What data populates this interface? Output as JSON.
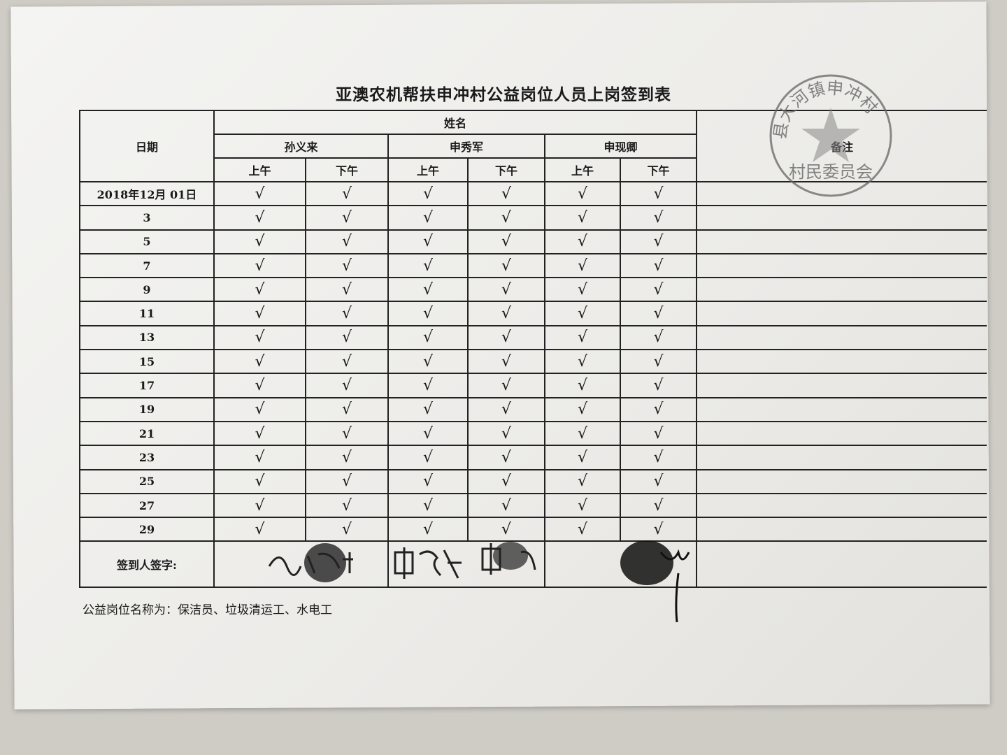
{
  "title": "亚澳农机帮扶申冲村公益岗位人员上岗签到表",
  "header": {
    "date_label": "日期",
    "name_label": "姓名",
    "remarks_label": "备注",
    "people": [
      "孙义来",
      "申秀军",
      "申现卿"
    ],
    "am": "上午",
    "pm": "下午"
  },
  "rows": [
    {
      "date": "2018年12月 01日",
      "marks": [
        "√",
        "√",
        "√",
        "√",
        "√",
        "√"
      ]
    },
    {
      "date": "3",
      "marks": [
        "√",
        "√",
        "√",
        "√",
        "√",
        "√"
      ]
    },
    {
      "date": "5",
      "marks": [
        "√",
        "√",
        "√",
        "√",
        "√",
        "√"
      ]
    },
    {
      "date": "7",
      "marks": [
        "√",
        "√",
        "√",
        "√",
        "√",
        "√"
      ]
    },
    {
      "date": "9",
      "marks": [
        "√",
        "√",
        "√",
        "√",
        "√",
        "√"
      ]
    },
    {
      "date": "11",
      "marks": [
        "√",
        "√",
        "√",
        "√",
        "√",
        "√"
      ]
    },
    {
      "date": "13",
      "marks": [
        "√",
        "√",
        "√",
        "√",
        "√",
        "√"
      ]
    },
    {
      "date": "15",
      "marks": [
        "√",
        "√",
        "√",
        "√",
        "√",
        "√"
      ]
    },
    {
      "date": "17",
      "marks": [
        "√",
        "√",
        "√",
        "√",
        "√",
        "√"
      ]
    },
    {
      "date": "19",
      "marks": [
        "√",
        "√",
        "√",
        "√",
        "√",
        "√"
      ]
    },
    {
      "date": "21",
      "marks": [
        "√",
        "√",
        "√",
        "√",
        "√",
        "√"
      ]
    },
    {
      "date": "23",
      "marks": [
        "√",
        "√",
        "√",
        "√",
        "√",
        "√"
      ]
    },
    {
      "date": "25",
      "marks": [
        "√",
        "√",
        "√",
        "√",
        "√",
        "√"
      ]
    },
    {
      "date": "27",
      "marks": [
        "√",
        "√",
        "√",
        "√",
        "√",
        "√"
      ]
    },
    {
      "date": "29",
      "marks": [
        "√",
        "√",
        "√",
        "√",
        "√",
        "√"
      ]
    }
  ],
  "signature_label": "签到人签字:",
  "signatures": [
    "孙义来",
    "申秀军",
    "申秀军",
    "申现卿"
  ],
  "footer": "公益岗位名称为：保洁员、垃圾清运工、水电工",
  "stamp": {
    "text": "县大河镇申冲村",
    "bottom": "村民委员会",
    "color": "#555555"
  }
}
